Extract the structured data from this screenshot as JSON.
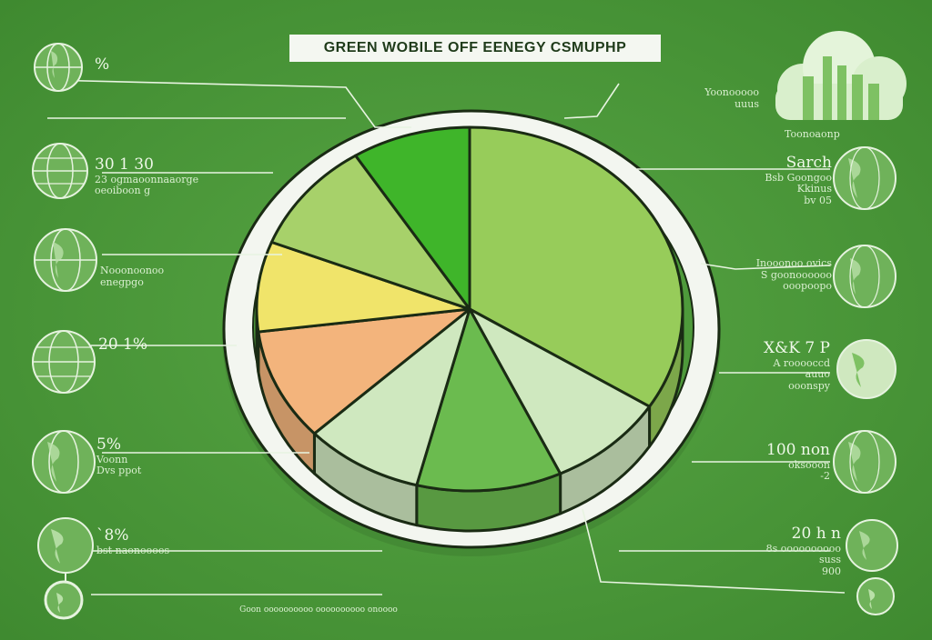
{
  "title": "GREEN WOBILE OFF EENEGY CSMUPHP",
  "colors": {
    "background": "#4f9a3c",
    "ring": "#f3f6f0",
    "slice_light_green": "#97cc5a",
    "slice_bright_green": "#3fb52a",
    "slice_yellow_green": "#a7d16a",
    "slice_yellow": "#f0e46a",
    "slice_orange": "#f3b47c",
    "slice_pale": "#cfe8bf",
    "slice_mid_green": "#6bbb4f",
    "outline": "#1a2b14"
  },
  "icons": {
    "left": [
      "globe-icon",
      "globe-icon",
      "globe-icon",
      "globe-icon",
      "globe-icon",
      "globe-icon",
      "globe-icon"
    ],
    "right": [
      "factory-cloud-icon",
      "globe-icon",
      "globe-icon",
      "globe-icon",
      "globe-icon",
      "globe-icon",
      "globe-icon"
    ]
  },
  "left_annotations": [
    {
      "big": "%",
      "small": ""
    },
    {
      "big": "30 1 30",
      "small": "23 ogmaoonnaaorge\noeoiboon g"
    },
    {
      "big": "",
      "small": "Nooonoonoo\nenegpgo"
    },
    {
      "big": "20 1%",
      "small": ""
    },
    {
      "big": "5%",
      "small": "Voonn\nDvs ppot"
    },
    {
      "big": "`8%",
      "small": "bst naonoooos"
    }
  ],
  "right_annotations": [
    {
      "big": "",
      "small": "Yoonooooo\nuuus"
    },
    {
      "big": "",
      "small": "Toonoaonp"
    },
    {
      "big": "Sarch",
      "small": "Bsb Goongoo\nKkinus\nbv 05"
    },
    {
      "big": "",
      "small": "Inooonoo ovics\nS goonoooooo\nooopoopo"
    },
    {
      "big": "X&K 7 P",
      "small": "A rooooccd\nauuo\nooonspy"
    },
    {
      "big": "100 non",
      "small": "oksooon\n-2"
    },
    {
      "big": "20 h n",
      "small": "8s oooooooooo\nsuss\n900"
    }
  ],
  "bottom_annotation": "Goon oooooooooo oooooooooo onoooo",
  "chart_data": {
    "type": "pie",
    "title": "GREEN WOBILE OFF EENEGY CSMUPHP",
    "categories": [
      "",
      "",
      "",
      "",
      "",
      "",
      "",
      ""
    ],
    "values": [
      34,
      9,
      11,
      9,
      10,
      8,
      10,
      9
    ],
    "colors": [
      "#97cc5a",
      "#cfe8bf",
      "#6bbb4f",
      "#cfe8bf",
      "#f3b47c",
      "#f0e46a",
      "#a7d16a",
      "#3fb52a"
    ]
  }
}
